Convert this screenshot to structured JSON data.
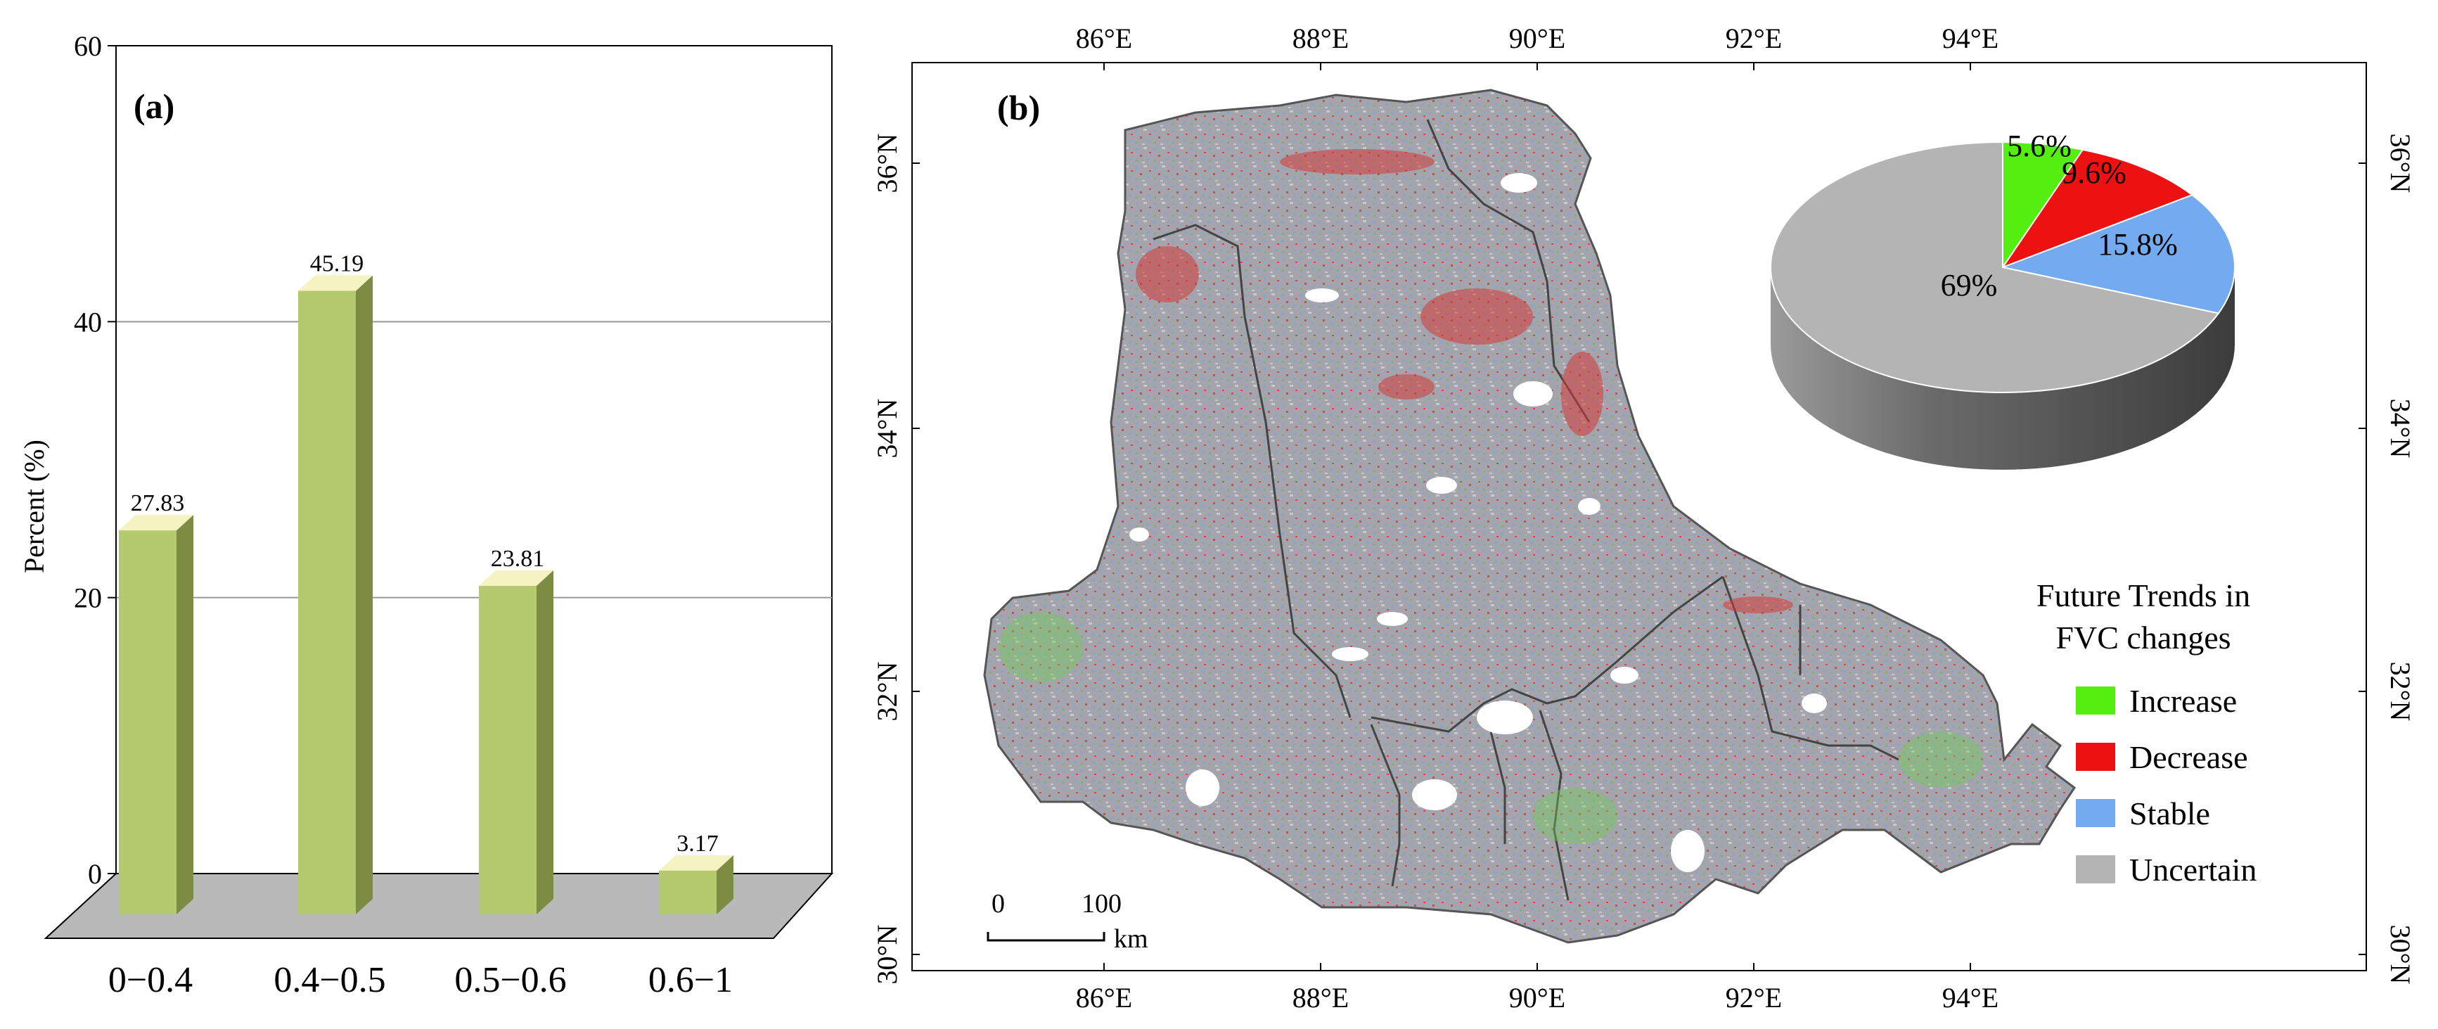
{
  "panel_a": {
    "label": "(a)",
    "ylabel": "Percent (%)",
    "yticks": [
      "0",
      "20",
      "40",
      "60"
    ],
    "colors": {
      "bar_front": "#b5c96e",
      "bar_side": "#7c8c43",
      "bar_top": "#f6f3c2",
      "floor": "#b9b9b9"
    }
  },
  "panel_b": {
    "label": "(b)",
    "lon_ticks": [
      "86°E",
      "88°E",
      "90°E",
      "92°E",
      "94°E"
    ],
    "lat_ticks": [
      "30°N",
      "32°N",
      "34°N",
      "36°N"
    ],
    "scale": {
      "zero": "0",
      "hundred": "100",
      "unit": "km"
    },
    "legend": {
      "title_line1": "Future Trends in",
      "title_line2": "FVC changes",
      "items": [
        {
          "label": "Increase",
          "color": "#55ee11"
        },
        {
          "label": "Decrease",
          "color": "#ee1111"
        },
        {
          "label": "Stable",
          "color": "#74aaf0"
        },
        {
          "label": "Uncertain",
          "color": "#b4b4b4"
        }
      ]
    }
  },
  "chart_data": [
    {
      "type": "bar",
      "categories": [
        "0−0.4",
        "0.4−0.5",
        "0.5−0.6",
        "0.6−1"
      ],
      "values": [
        27.83,
        45.19,
        23.81,
        3.17
      ],
      "value_labels": [
        "27.83",
        "45.19",
        "23.81",
        "3.17"
      ],
      "title": "",
      "xlabel": "",
      "ylabel": "Percent (%)",
      "ylim": [
        0,
        60
      ],
      "grid": true
    },
    {
      "type": "pie",
      "categories": [
        "Increase",
        "Decrease",
        "Stable",
        "Uncertain"
      ],
      "values": [
        5.6,
        9.6,
        15.8,
        69
      ],
      "value_labels": [
        "5.6%",
        "9.6%",
        "15.8%",
        "69%"
      ],
      "colors": [
        "#55ee11",
        "#ee1111",
        "#74aaf0",
        "#b4b4b4"
      ]
    }
  ]
}
